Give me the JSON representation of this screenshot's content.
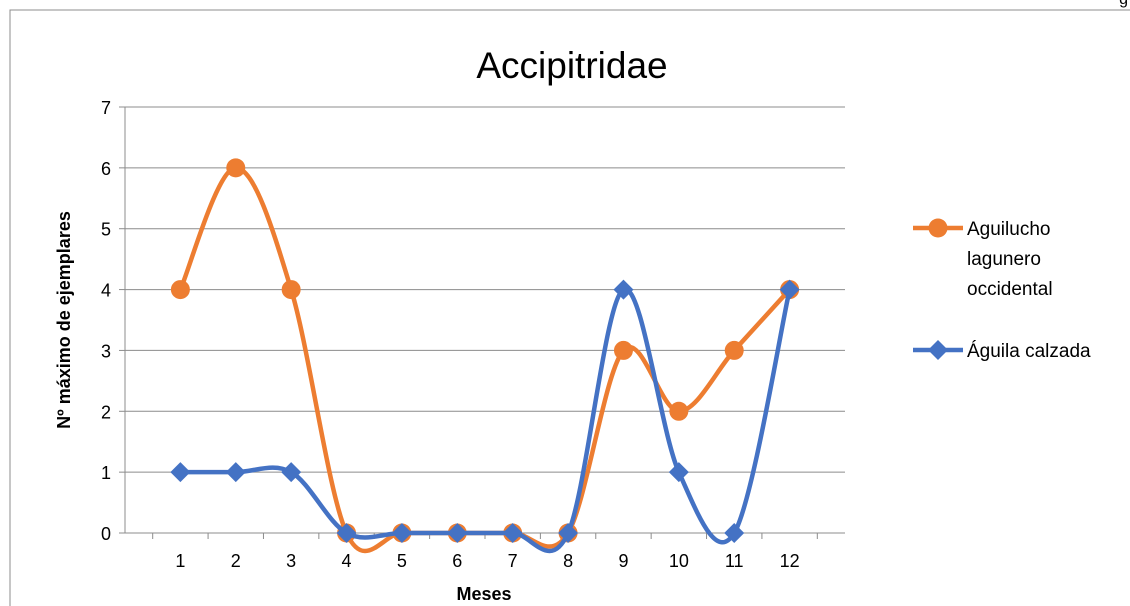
{
  "page_mark": "g",
  "chart_data": {
    "type": "line",
    "title": "Accipitridae",
    "xlabel": "Meses",
    "ylabel": "Nº máximo de ejemplares",
    "x": [
      1,
      2,
      3,
      4,
      5,
      6,
      7,
      8,
      9,
      10,
      11,
      12
    ],
    "ylim": [
      0,
      7
    ],
    "yticks": [
      0,
      1,
      2,
      3,
      4,
      5,
      6,
      7
    ],
    "grid": "horizontal",
    "smooth": true,
    "legend_position": "right",
    "series": [
      {
        "name": "Aguilucho lagunero occidental",
        "legend_lines": [
          "Aguilucho",
          "lagunero",
          "occidental"
        ],
        "color": "#ED7D31",
        "marker": "circle",
        "values": [
          4,
          6,
          4,
          0,
          0,
          0,
          0,
          0,
          3,
          2,
          3,
          4
        ]
      },
      {
        "name": "Águila calzada",
        "legend_lines": [
          "Águila calzada"
        ],
        "color": "#4472C4",
        "marker": "diamond",
        "values": [
          1,
          1,
          1,
          0,
          0,
          0,
          0,
          0,
          4,
          1,
          0,
          4
        ]
      }
    ]
  }
}
